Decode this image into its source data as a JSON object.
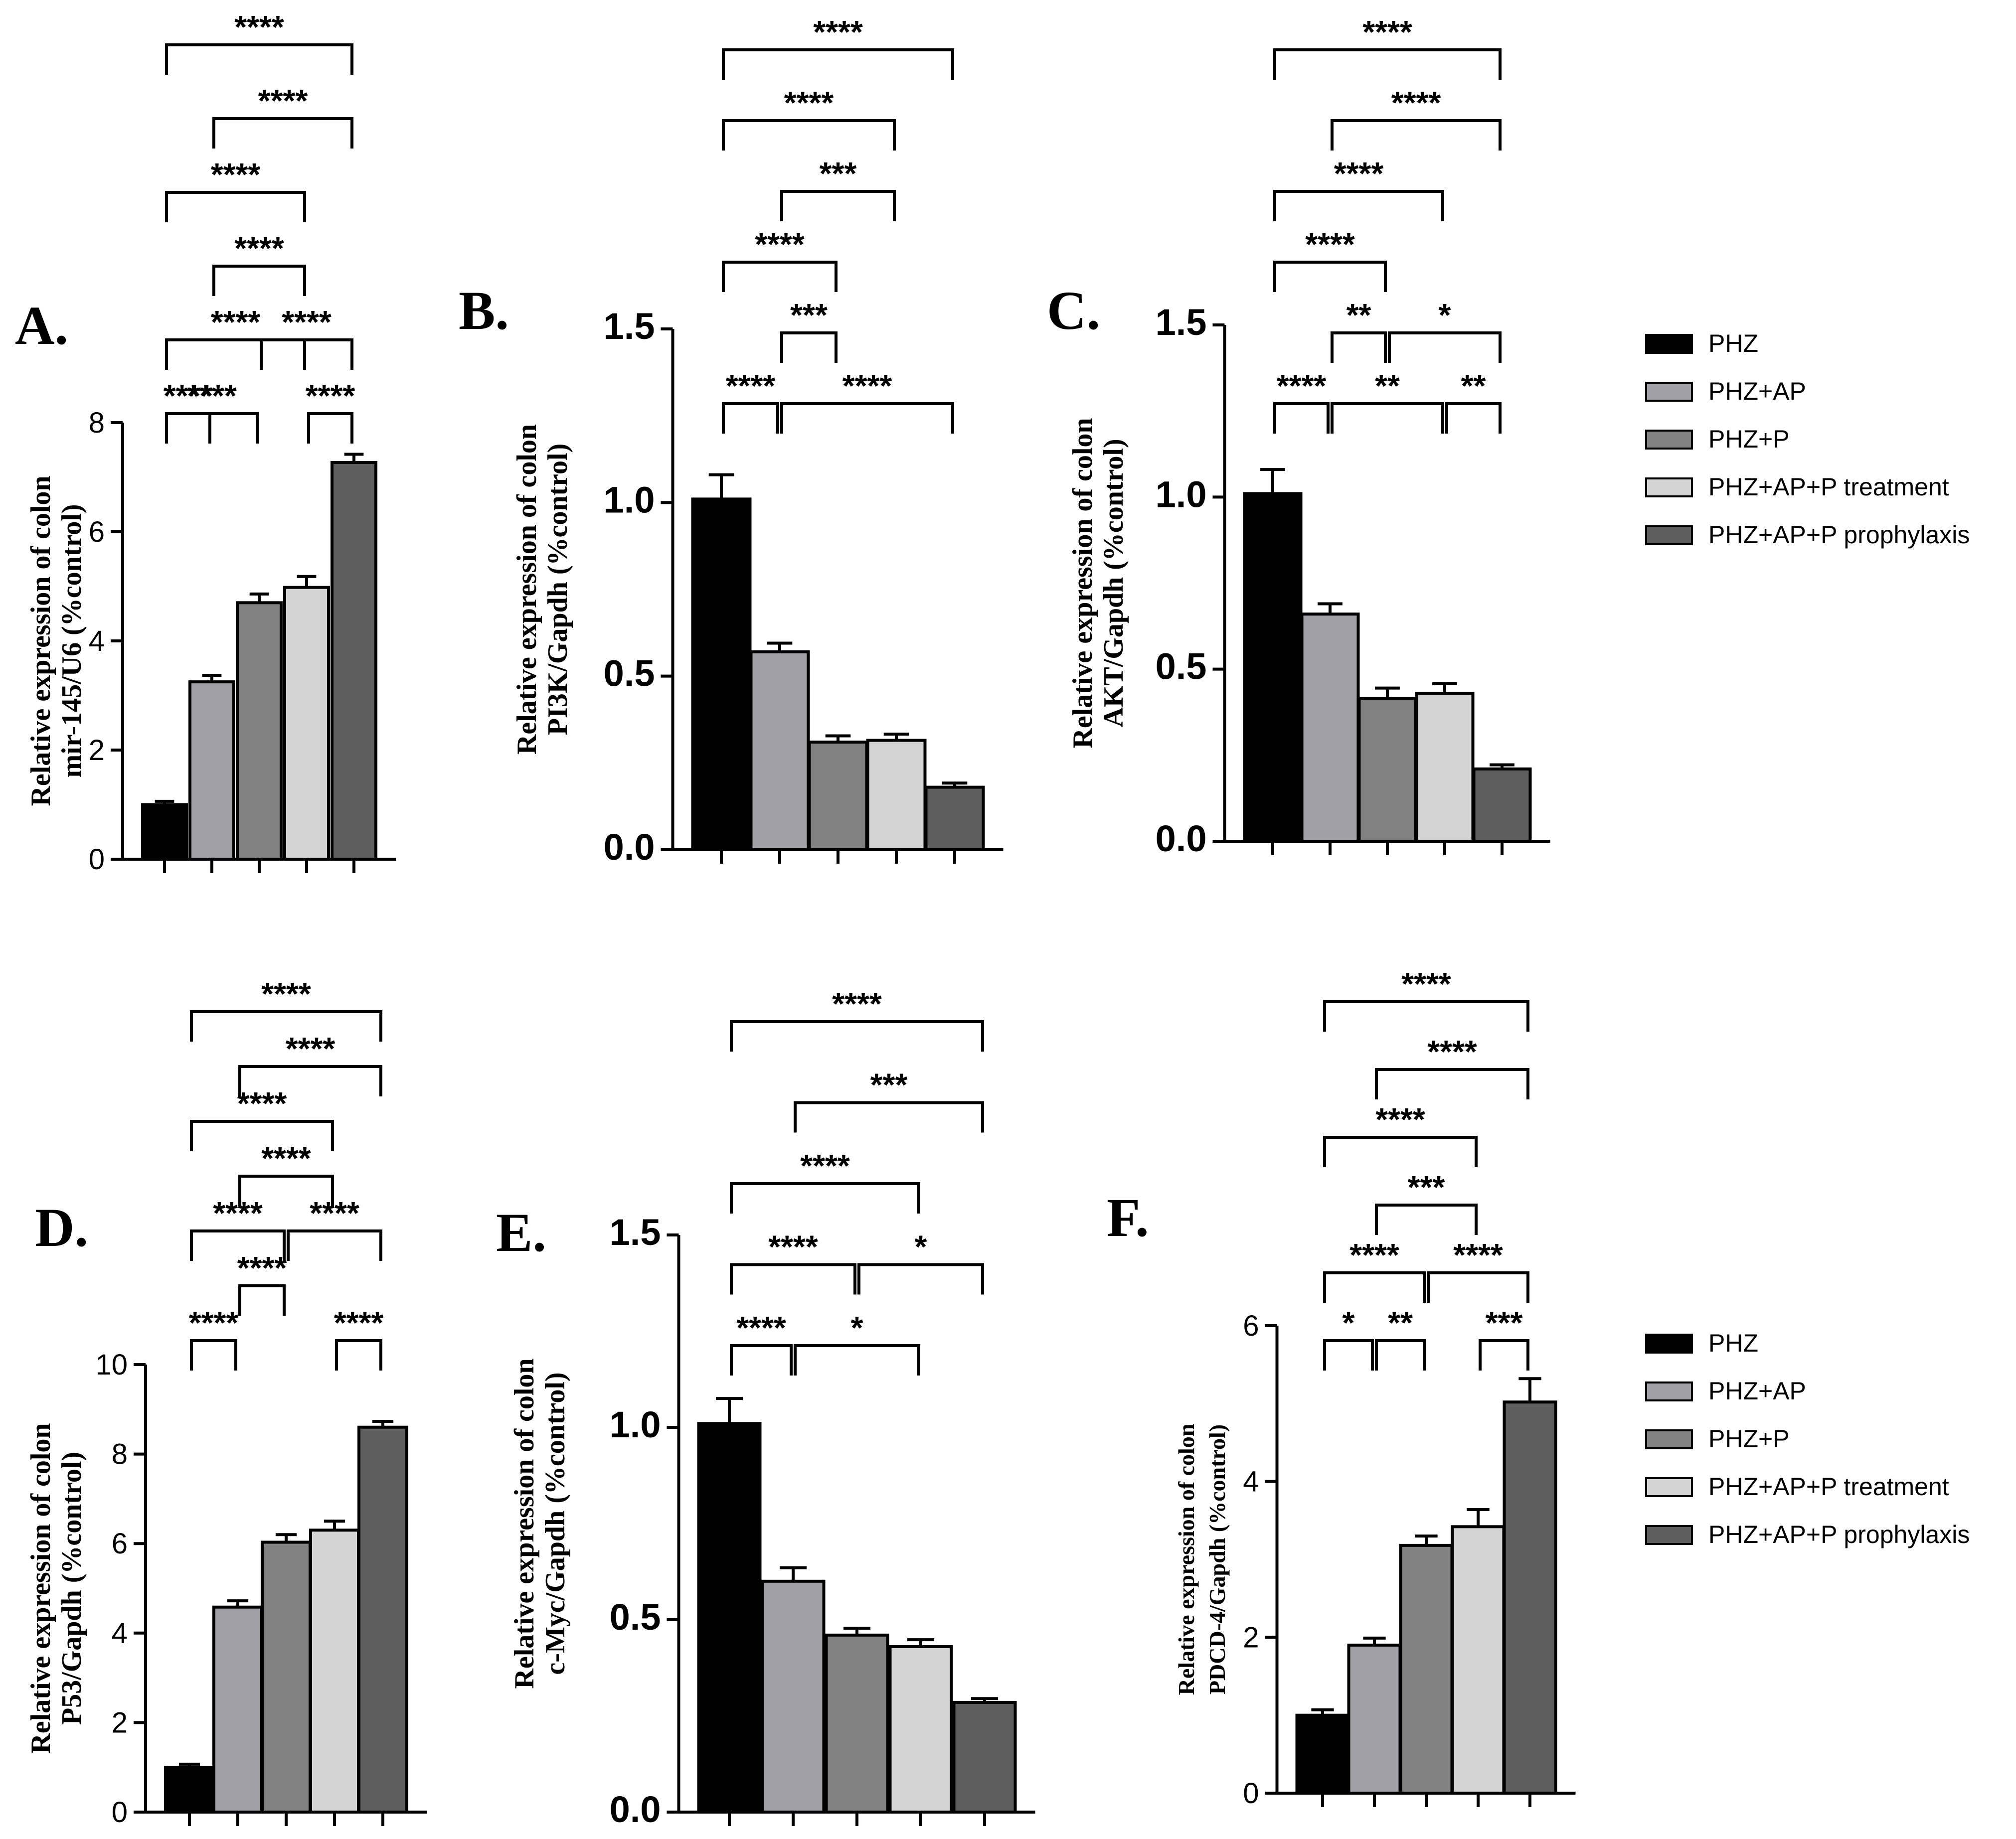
{
  "legend": {
    "items": [
      {
        "label": "PHZ",
        "color": "#000000"
      },
      {
        "label": "PHZ+AP",
        "color": "#a0a0a6"
      },
      {
        "label": "PHZ+P",
        "color": "#818181"
      },
      {
        "label": "PHZ+AP+P treatment",
        "color": "#d4d4d4"
      },
      {
        "label": "PHZ+AP+P prophylaxis",
        "color": "#5e5e5e"
      }
    ]
  },
  "chart_data": [
    {
      "type": "bar",
      "panel": "A.",
      "ylabel_lines": [
        "Relative expression of colon",
        "mir-145/U6 (%control)"
      ],
      "ylim": [
        0,
        8
      ],
      "yticks": [
        0,
        2,
        4,
        6,
        8
      ],
      "ytick_labels": [
        "0",
        "2",
        "4",
        "6",
        "8"
      ],
      "values": [
        1.0,
        3.25,
        4.7,
        4.98,
        7.27
      ],
      "errors": [
        0.06,
        0.12,
        0.16,
        0.2,
        0.15
      ],
      "comparisons": [
        {
          "a": 0,
          "b": 1,
          "label": "****"
        },
        {
          "a": 0,
          "b": 2,
          "label": "****"
        },
        {
          "a": 3,
          "b": 4,
          "label": "****"
        },
        {
          "a": 0,
          "b": 3,
          "label": "****"
        },
        {
          "a": 2,
          "b": 4,
          "label": "****"
        },
        {
          "a": 1,
          "b": 3,
          "label": "****"
        },
        {
          "a": 0,
          "b": 3,
          "label": "****"
        },
        {
          "a": 1,
          "b": 4,
          "label": "****"
        },
        {
          "a": 0,
          "b": 4,
          "label": "****"
        }
      ]
    },
    {
      "type": "bar",
      "panel": "B.",
      "ylabel_lines": [
        "Relative expression of colon",
        "PI3K/Gapdh (%control)"
      ],
      "ylim": [
        0,
        1.5
      ],
      "yticks": [
        0,
        0.5,
        1.0,
        1.5
      ],
      "ytick_labels": [
        "0.0",
        "0.5",
        "1.0",
        "1.5"
      ],
      "values": [
        1.01,
        0.57,
        0.31,
        0.315,
        0.18
      ],
      "errors": [
        0.07,
        0.025,
        0.018,
        0.018,
        0.012
      ],
      "comparisons": [
        {
          "a": 0,
          "b": 1,
          "label": "****"
        },
        {
          "a": 1,
          "b": 4,
          "label": "****"
        },
        {
          "a": 1,
          "b": 2,
          "label": "***"
        },
        {
          "a": 0,
          "b": 2,
          "label": "****"
        },
        {
          "a": 1,
          "b": 3,
          "label": "***"
        },
        {
          "a": 0,
          "b": 3,
          "label": "****"
        },
        {
          "a": 0,
          "b": 4,
          "label": "****"
        }
      ]
    },
    {
      "type": "bar",
      "panel": "C.",
      "ylabel_lines": [
        "Relative expression of colon",
        "AKT/Gapdh (%control)"
      ],
      "ylim": [
        0,
        1.5
      ],
      "yticks": [
        0,
        0.5,
        1.0,
        1.5
      ],
      "ytick_labels": [
        "0.0",
        "0.5",
        "1.0",
        "1.5"
      ],
      "values": [
        1.01,
        0.66,
        0.415,
        0.43,
        0.21
      ],
      "errors": [
        0.07,
        0.03,
        0.03,
        0.028,
        0.012
      ],
      "comparisons": [
        {
          "a": 0,
          "b": 1,
          "label": "****"
        },
        {
          "a": 1,
          "b": 3,
          "label": "**"
        },
        {
          "a": 3,
          "b": 4,
          "label": "**"
        },
        {
          "a": 1,
          "b": 2,
          "label": "**"
        },
        {
          "a": 2,
          "b": 4,
          "label": "*"
        },
        {
          "a": 0,
          "b": 2,
          "label": "****"
        },
        {
          "a": 0,
          "b": 3,
          "label": "****"
        },
        {
          "a": 1,
          "b": 4,
          "label": "****"
        },
        {
          "a": 0,
          "b": 4,
          "label": "****"
        }
      ]
    },
    {
      "type": "bar",
      "panel": "D.",
      "ylabel_lines": [
        "Relative expression of colon",
        "P53/Gapdh (%control)"
      ],
      "ylim": [
        0,
        10
      ],
      "yticks": [
        0,
        2,
        4,
        6,
        8,
        10
      ],
      "ytick_labels": [
        "0",
        "2",
        "4",
        "6",
        "8",
        "10"
      ],
      "values": [
        1.0,
        4.58,
        6.03,
        6.3,
        8.6
      ],
      "errors": [
        0.07,
        0.14,
        0.17,
        0.2,
        0.13
      ],
      "comparisons": [
        {
          "a": 0,
          "b": 1,
          "label": "****"
        },
        {
          "a": 3,
          "b": 4,
          "label": "****"
        },
        {
          "a": 1,
          "b": 2,
          "label": "****"
        },
        {
          "a": 0,
          "b": 2,
          "label": "****"
        },
        {
          "a": 2,
          "b": 4,
          "label": "****"
        },
        {
          "a": 1,
          "b": 3,
          "label": "****"
        },
        {
          "a": 0,
          "b": 3,
          "label": "****"
        },
        {
          "a": 1,
          "b": 4,
          "label": "****"
        },
        {
          "a": 0,
          "b": 4,
          "label": "****"
        }
      ]
    },
    {
      "type": "bar",
      "panel": "E.",
      "ylabel_lines": [
        "Relative expression of colon",
        "c-Myc/Gapdh (%control)"
      ],
      "ylim": [
        0,
        1.5
      ],
      "yticks": [
        0,
        0.5,
        1.0,
        1.5
      ],
      "ytick_labels": [
        "0.0",
        "0.5",
        "1.0",
        "1.5"
      ],
      "values": [
        1.01,
        0.6,
        0.46,
        0.43,
        0.285
      ],
      "errors": [
        0.065,
        0.035,
        0.018,
        0.018,
        0.01
      ],
      "comparisons": [
        {
          "a": 0,
          "b": 1,
          "label": "****"
        },
        {
          "a": 1,
          "b": 3,
          "label": "*"
        },
        {
          "a": 0,
          "b": 2,
          "label": "****"
        },
        {
          "a": 2,
          "b": 4,
          "label": "*"
        },
        {
          "a": 0,
          "b": 3,
          "label": "****"
        },
        {
          "a": 1,
          "b": 4,
          "label": "***"
        },
        {
          "a": 0,
          "b": 4,
          "label": "****"
        }
      ]
    },
    {
      "type": "bar",
      "panel": "F.",
      "ylabel_lines": [
        "Relative expression of colon",
        "PDCD-4/Gapdh (%control)"
      ],
      "ylim": [
        0,
        6
      ],
      "yticks": [
        0,
        2,
        4,
        6
      ],
      "ytick_labels": [
        "0",
        "2",
        "4",
        "6"
      ],
      "values": [
        1.0,
        1.9,
        3.18,
        3.42,
        5.02
      ],
      "errors": [
        0.07,
        0.09,
        0.12,
        0.22,
        0.3
      ],
      "comparisons": [
        {
          "a": 0,
          "b": 1,
          "label": "*"
        },
        {
          "a": 1,
          "b": 2,
          "label": "**"
        },
        {
          "a": 3,
          "b": 4,
          "label": "***"
        },
        {
          "a": 0,
          "b": 2,
          "label": "****"
        },
        {
          "a": 2,
          "b": 4,
          "label": "****"
        },
        {
          "a": 1,
          "b": 3,
          "label": "***"
        },
        {
          "a": 0,
          "b": 3,
          "label": "****"
        },
        {
          "a": 1,
          "b": 4,
          "label": "****"
        },
        {
          "a": 0,
          "b": 4,
          "label": "****"
        }
      ]
    }
  ]
}
